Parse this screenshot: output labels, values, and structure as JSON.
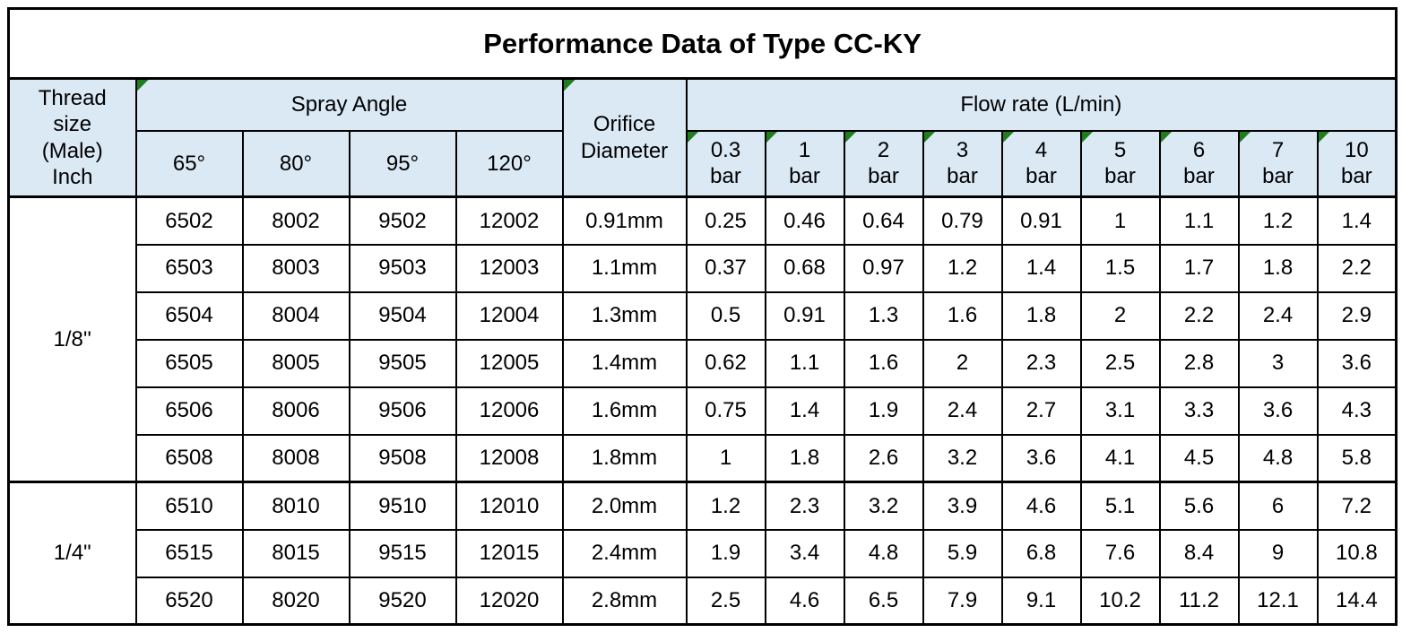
{
  "title": "Performance Data of Type CC-KY",
  "colors": {
    "header_bg": "#dbe9f5",
    "flag_green": "#1f7d1f",
    "border": "#000000",
    "text": "#000000",
    "background": "#ffffff"
  },
  "header": {
    "thread_size_label": "Thread\nsize\n(Male)\nInch",
    "spray_angle_label": "Spray Angle",
    "orifice_label": "Orifice\nDiameter",
    "flow_rate_label": "Flow rate (L/min)",
    "spray_angles": [
      "65°",
      "80°",
      "95°",
      "120°"
    ],
    "pressures": [
      "0.3\nbar",
      "1\nbar",
      "2\nbar",
      "3\nbar",
      "4\nbar",
      "5\nbar",
      "6\nbar",
      "7\nbar",
      "10\nbar"
    ]
  },
  "sections": [
    {
      "thread_size": "1/8''",
      "rows": [
        {
          "models": [
            "6502",
            "8002",
            "9502",
            "12002"
          ],
          "orifice": "0.91mm",
          "flows": [
            "0.25",
            "0.46",
            "0.64",
            "0.79",
            "0.91",
            "1",
            "1.1",
            "1.2",
            "1.4"
          ]
        },
        {
          "models": [
            "6503",
            "8003",
            "9503",
            "12003"
          ],
          "orifice": "1.1mm",
          "flows": [
            "0.37",
            "0.68",
            "0.97",
            "1.2",
            "1.4",
            "1.5",
            "1.7",
            "1.8",
            "2.2"
          ]
        },
        {
          "models": [
            "6504",
            "8004",
            "9504",
            "12004"
          ],
          "orifice": "1.3mm",
          "flows": [
            "0.5",
            "0.91",
            "1.3",
            "1.6",
            "1.8",
            "2",
            "2.2",
            "2.4",
            "2.9"
          ]
        },
        {
          "models": [
            "6505",
            "8005",
            "9505",
            "12005"
          ],
          "orifice": "1.4mm",
          "flows": [
            "0.62",
            "1.1",
            "1.6",
            "2",
            "2.3",
            "2.5",
            "2.8",
            "3",
            "3.6"
          ]
        },
        {
          "models": [
            "6506",
            "8006",
            "9506",
            "12006"
          ],
          "orifice": "1.6mm",
          "flows": [
            "0.75",
            "1.4",
            "1.9",
            "2.4",
            "2.7",
            "3.1",
            "3.3",
            "3.6",
            "4.3"
          ]
        },
        {
          "models": [
            "6508",
            "8008",
            "9508",
            "12008"
          ],
          "orifice": "1.8mm",
          "flows": [
            "1",
            "1.8",
            "2.6",
            "3.2",
            "3.6",
            "4.1",
            "4.5",
            "4.8",
            "5.8"
          ]
        }
      ]
    },
    {
      "thread_size": "1/4\"",
      "rows": [
        {
          "models": [
            "6510",
            "8010",
            "9510",
            "12010"
          ],
          "orifice": "2.0mm",
          "flows": [
            "1.2",
            "2.3",
            "3.2",
            "3.9",
            "4.6",
            "5.1",
            "5.6",
            "6",
            "7.2"
          ]
        },
        {
          "models": [
            "6515",
            "8015",
            "9515",
            "12015"
          ],
          "orifice": "2.4mm",
          "flows": [
            "1.9",
            "3.4",
            "4.8",
            "5.9",
            "6.8",
            "7.6",
            "8.4",
            "9",
            "10.8"
          ]
        },
        {
          "models": [
            "6520",
            "8020",
            "9520",
            "12020"
          ],
          "orifice": "2.8mm",
          "flows": [
            "2.5",
            "4.6",
            "6.5",
            "7.9",
            "9.1",
            "10.2",
            "11.2",
            "12.1",
            "14.4"
          ]
        }
      ]
    }
  ]
}
